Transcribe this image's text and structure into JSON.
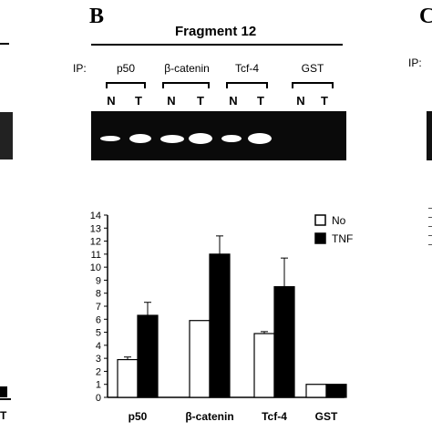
{
  "panels": {
    "left_label": "",
    "center_label": "B",
    "right_label": "C"
  },
  "left_panel": {
    "x_tick_partial": "T"
  },
  "right_panel": {
    "ip_label": "IP:"
  },
  "blot": {
    "title": "Fragment 12",
    "ip_label": "IP:",
    "groups": [
      {
        "name": "p50",
        "lanes": [
          "N",
          "T"
        ],
        "band_intensity": [
          0.45,
          1.0
        ]
      },
      {
        "name": "β-catenin",
        "lanes": [
          "N",
          "T"
        ],
        "band_intensity": [
          0.85,
          1.0
        ]
      },
      {
        "name": "Tcf-4",
        "lanes": [
          "N",
          "T"
        ],
        "band_intensity": [
          0.6,
          1.0
        ]
      },
      {
        "name": "GST",
        "lanes": [
          "N",
          "T"
        ],
        "band_intensity": [
          0,
          0
        ]
      }
    ],
    "gel_color": "#0a0a0a"
  },
  "chart_data": {
    "type": "bar",
    "categories": [
      "p50",
      "β-catenin",
      "Tcf-4",
      "GST"
    ],
    "series": [
      {
        "name": "No",
        "values": [
          2.9,
          5.9,
          4.9,
          1.0
        ],
        "errors": [
          0.2,
          0.0,
          0.15,
          0.0
        ],
        "color": "#ffffff"
      },
      {
        "name": "TNF",
        "values": [
          6.3,
          11.0,
          8.5,
          1.0
        ],
        "errors": [
          1.0,
          1.4,
          2.2,
          0.0
        ],
        "color": "#000000"
      }
    ],
    "ylim": [
      0,
      14
    ],
    "yticks": [
      0,
      1,
      2,
      3,
      4,
      5,
      6,
      7,
      8,
      9,
      10,
      11,
      12,
      13,
      14
    ],
    "legend_position": "top-right",
    "grid": false
  }
}
